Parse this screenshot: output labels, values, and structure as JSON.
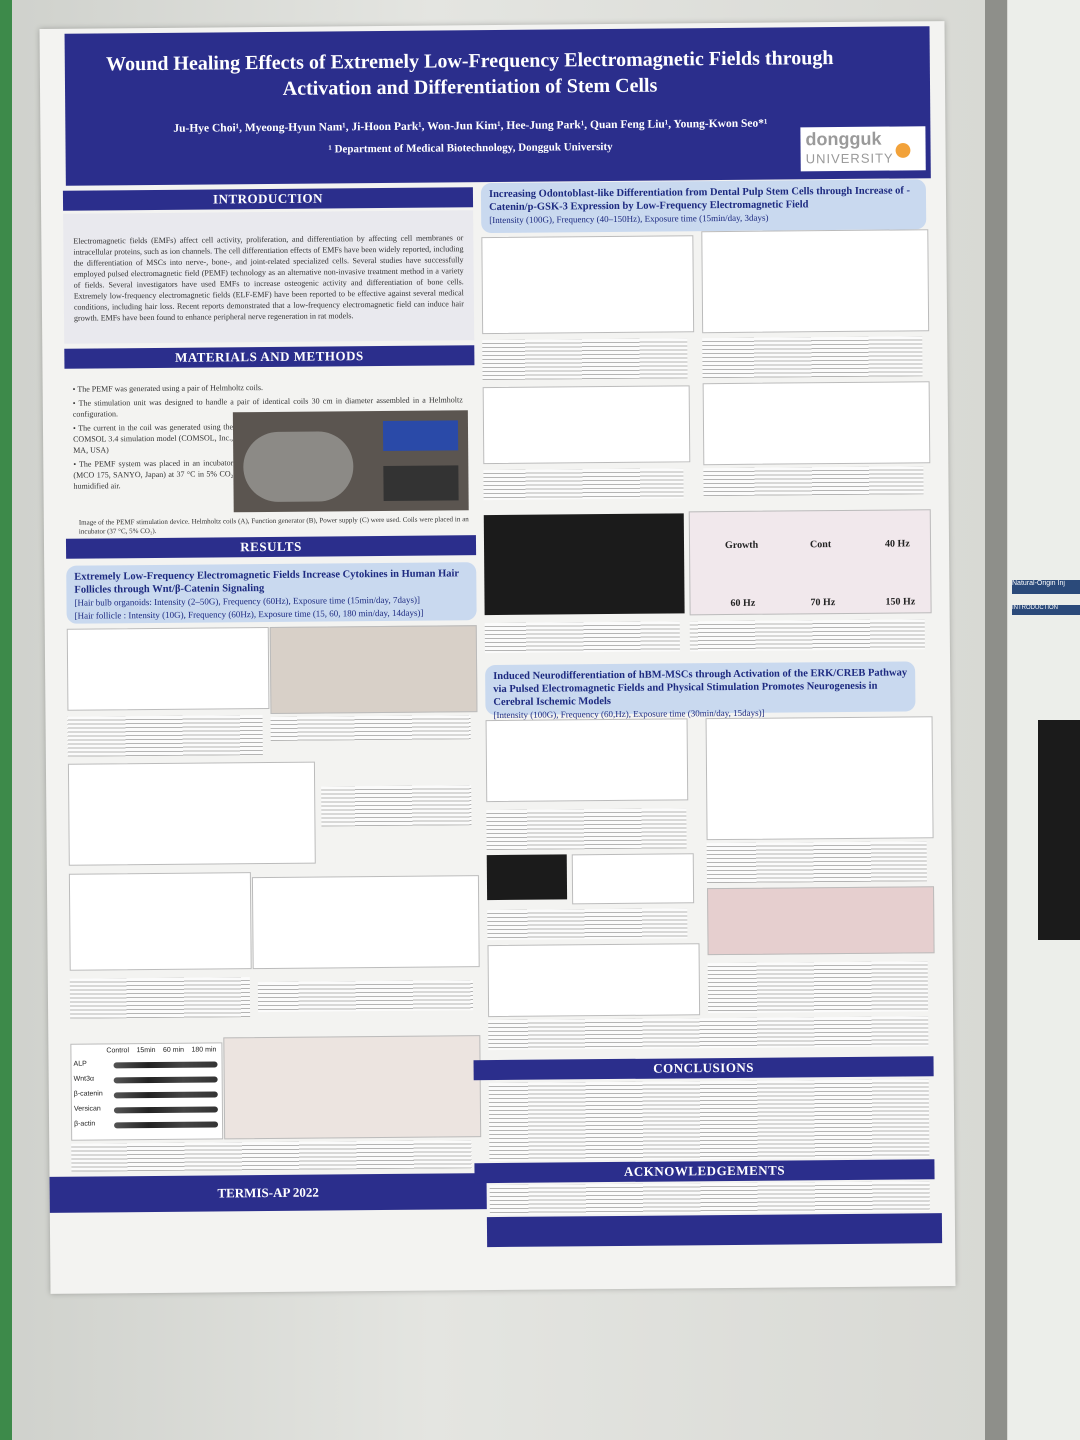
{
  "header": {
    "title": "Wound Healing Effects of Extremely Low-Frequency Electromagnetic Fields through Activation and Differentiation of Stem Cells",
    "authors": "Ju-Hye Choi¹, Myeong-Hyun Nam¹, Ji-Hoon Park¹, Won-Jun Kim¹, Hee-Jung Park¹, Quan Feng Liu¹, Young-Kwon Seo*¹",
    "affiliation": "¹ Department of Medical Biotechnology, Dongguk University",
    "logo": [
      "dongguk",
      "UNIVERSITY"
    ]
  },
  "introduction": {
    "heading": "INTRODUCTION",
    "text": "Electromagnetic fields (EMFs) affect cell activity, proliferation, and differentiation by affecting cell membranes or intracellular proteins, such as ion channels. The cell differentiation effects of EMFs have been widely reported, including the differentiation of MSCs into nerve-, bone-, and joint-related specialized cells. Several studies have successfully employed pulsed electromagnetic field (PEMF) technology as an alternative non-invasive treatment method in a variety of fields. Several investigators have used EMFs to increase osteogenic activity and differentiation of bone cells. Extremely low-frequency electromagnetic fields (ELF-EMF) have been reported to be effective against several medical conditions, including hair loss. Recent reports demonstrated that a low-frequency electromagnetic field can induce hair growth. EMFs have been found to enhance peripheral nerve regeneration in rat models."
  },
  "methods": {
    "heading": "MATERIALS AND METHODS",
    "bullets": [
      "The PEMF was generated using a pair of Helmholtz coils.",
      "The stimulation unit was designed to handle a pair of identical coils 30 cm in diameter assembled in a Helmholtz configuration.",
      "The current in the coil was generated using the COMSOL 3.4 simulation model (COMSOL, Inc., MA, USA)",
      "The PEMF system was placed in an incubator (MCO 175, SANYO, Japan) at 37 °C in 5% CO₂ humidified air."
    ],
    "caption": "Image of the PEMF stimulation device. Helmholtz coils (A), Function generator (B), Power supply (C) were used. Coils were placed in an incubator (37 °C, 5% CO₂)."
  },
  "results": {
    "heading": "RESULTS",
    "sections": [
      {
        "title": "Extremely Low-Frequency Electromagnetic Fields Increase Cytokines in Human Hair Follicles through Wnt/β-Catenin Signaling",
        "params": [
          "[Hair bulb organoids: Intensity (2–50G), Frequency (60Hz), Exposure time (15min/day, 7days)]",
          "[Hair follicle : Intensity (10G), Frequency (60Hz), Exposure time (15, 60, 180 min/day, 14days)]"
        ]
      },
      {
        "title": "Increasing Odontoblast-like Differentiation from Dental Pulp Stem Cells through Increase of -Catenin/p-GSK-3 Expression by Low-Frequency Electromagnetic Field",
        "params": [
          "[Intensity (100G), Frequency (40–150Hz), Exposure time (15min/day, 3days)"
        ]
      },
      {
        "title": "Induced Neurodifferentiation of hBM-MSCs through Activation of the ERK/CREB Pathway via Pulsed Electromagnetic Fields and Physical Stimulation Promotes Neurogenesis in Cerebral Ischemic Models",
        "params": [
          "[Intensity (100G), Frequency (60,Hz), Exposure time (30min/day, 15days)]"
        ]
      }
    ],
    "blot": {
      "columns": [
        "Control",
        "15min",
        "60 min",
        "180 min"
      ],
      "rows": [
        "ALP",
        "Wnt3α",
        "β-catenin",
        "Versican",
        "β-actin"
      ]
    },
    "staining_labels": [
      "Growth",
      "Cont",
      "40 Hz",
      "60 Hz",
      "70 Hz",
      "150 Hz"
    ]
  },
  "conclusions": {
    "heading": "CONCLUSIONS"
  },
  "acknowledgements": {
    "heading": "ACKNOWLEDGEMENTS"
  },
  "footer": "TERMIS-AP 2022",
  "neighbor": {
    "title": "Natural-Origin Inj",
    "heading": "INTRODUCTION"
  }
}
